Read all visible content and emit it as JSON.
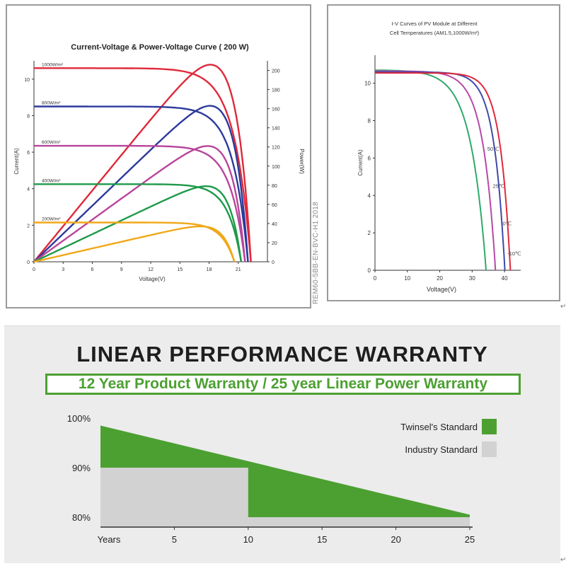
{
  "serial_text": "REM60-5BB-EN-BVC-H1 2018",
  "corner_mark": "↵",
  "chart_data": [
    {
      "type": "line",
      "title": "Current-Voltage & Power-Voltage Curve ( 200 W)",
      "xlabel": "Voltage(V)",
      "ylabel": "Current(A)",
      "y2label": "Power(W)",
      "xlim": [
        0,
        24
      ],
      "ylim": [
        0,
        11
      ],
      "y2lim": [
        0,
        210
      ],
      "xticks": [
        0,
        3,
        6,
        9,
        12,
        15,
        18,
        21
      ],
      "yticks": [
        0,
        2,
        4,
        6,
        8,
        10
      ],
      "y2ticks": [
        0,
        20,
        40,
        60,
        80,
        100,
        120,
        140,
        160,
        180,
        200
      ],
      "series": [
        {
          "name": "1000W/m²",
          "color": "#e0283a",
          "isc": 10.6,
          "voc": 22.3,
          "pmax_v": 17.9,
          "pmax": 206,
          "knee": 0.86
        },
        {
          "name": "800W/m²",
          "color": "#2c3a9c",
          "isc": 8.5,
          "voc": 22.0,
          "pmax_v": 18.1,
          "pmax": 163,
          "knee": 0.87
        },
        {
          "name": "600W/m²",
          "color": "#b8449c",
          "isc": 6.35,
          "voc": 21.7,
          "pmax_v": 18.2,
          "pmax": 121,
          "knee": 0.87
        },
        {
          "name": "400W/m²",
          "color": "#1e9a4a",
          "isc": 4.25,
          "voc": 21.3,
          "pmax_v": 18.3,
          "pmax": 79,
          "knee": 0.88
        },
        {
          "name": "200W/m²",
          "color": "#f0a818",
          "isc": 2.15,
          "voc": 20.6,
          "pmax_v": 18.5,
          "pmax": 37,
          "knee": 0.88
        }
      ]
    },
    {
      "type": "line",
      "title": "I-V Curves of PV Module at Different Cell Temperatures (AM1.5,1000W/m²)",
      "xlabel": "Voltage(V)",
      "ylabel": "Current(A)",
      "xlim": [
        0,
        45
      ],
      "ylim": [
        0,
        11.5
      ],
      "xticks": [
        0,
        10,
        20,
        30,
        40
      ],
      "yticks": [
        0,
        2,
        4,
        6,
        8,
        10
      ],
      "series": [
        {
          "name": "50℃",
          "color": "#2eaa6a",
          "isc": 10.7,
          "voc": 34.3,
          "knee": 0.81
        },
        {
          "name": "25℃",
          "color": "#b848a8",
          "isc": 10.65,
          "voc": 37.2,
          "knee": 0.83
        },
        {
          "name": "0℃",
          "color": "#3f4aa8",
          "isc": 10.6,
          "voc": 40.1,
          "knee": 0.85
        },
        {
          "name": "-10℃",
          "color": "#e0283a",
          "isc": 10.55,
          "voc": 41.8,
          "knee": 0.86
        }
      ]
    },
    {
      "type": "area",
      "title": "LINEAR PERFORMANCE WARRANTY",
      "subtitle": "12 Year Product Warranty / 25 year Linear Power Warranty",
      "xlabel": "Years",
      "xlim": [
        0,
        25
      ],
      "ylim": [
        78,
        100
      ],
      "xticks": [
        5,
        10,
        15,
        20,
        25
      ],
      "ytick_labels": [
        "100%",
        "90%",
        "80%"
      ],
      "yticks": [
        100,
        90,
        80
      ],
      "series": [
        {
          "name": "Twinsel's Standard",
          "color": "#4ca032",
          "x": [
            0,
            25
          ],
          "y": [
            98.5,
            80.5
          ]
        },
        {
          "name": "Industry Standard",
          "color": "#d2d2d2",
          "x": [
            0,
            10,
            10,
            25
          ],
          "y": [
            90,
            90,
            80,
            80
          ]
        }
      ],
      "legend_position": "top-right"
    }
  ]
}
